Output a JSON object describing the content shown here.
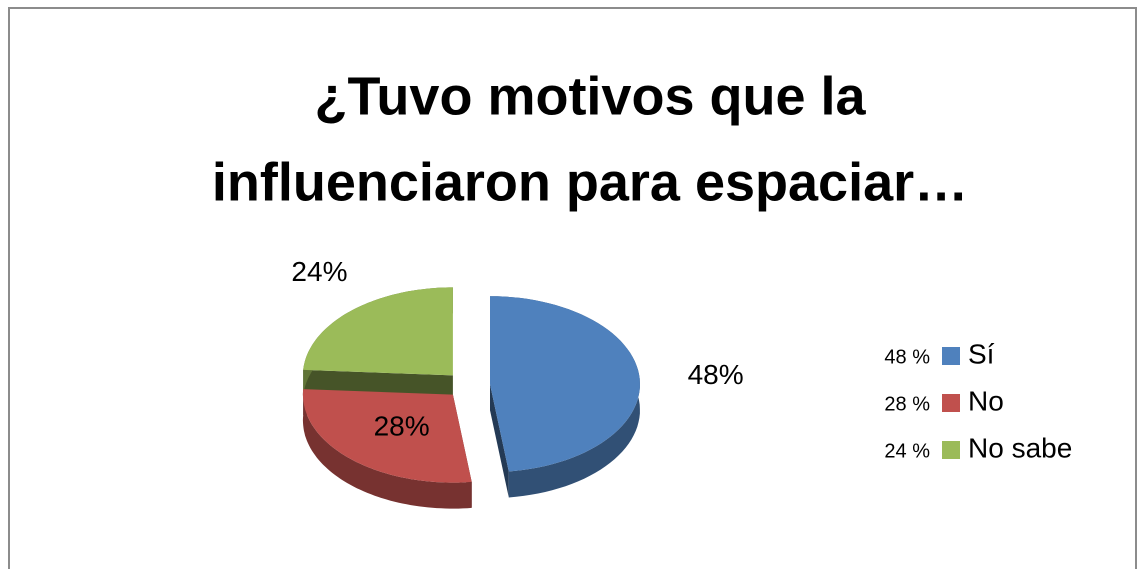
{
  "chart_data": {
    "type": "pie",
    "title": [
      "¿Tuvo motivos que la",
      "influenciaron  para espaciar…"
    ],
    "categories": [
      "Sí",
      "No",
      "No sabe"
    ],
    "values": [
      48,
      28,
      24
    ],
    "value_labels": [
      "48%",
      "28%",
      "24%"
    ],
    "legend_value_labels": [
      "48 %",
      "28 %",
      "24 %"
    ],
    "colors": [
      "#4f81bd",
      "#c0504d",
      "#9bbb59"
    ],
    "legend": "right"
  }
}
